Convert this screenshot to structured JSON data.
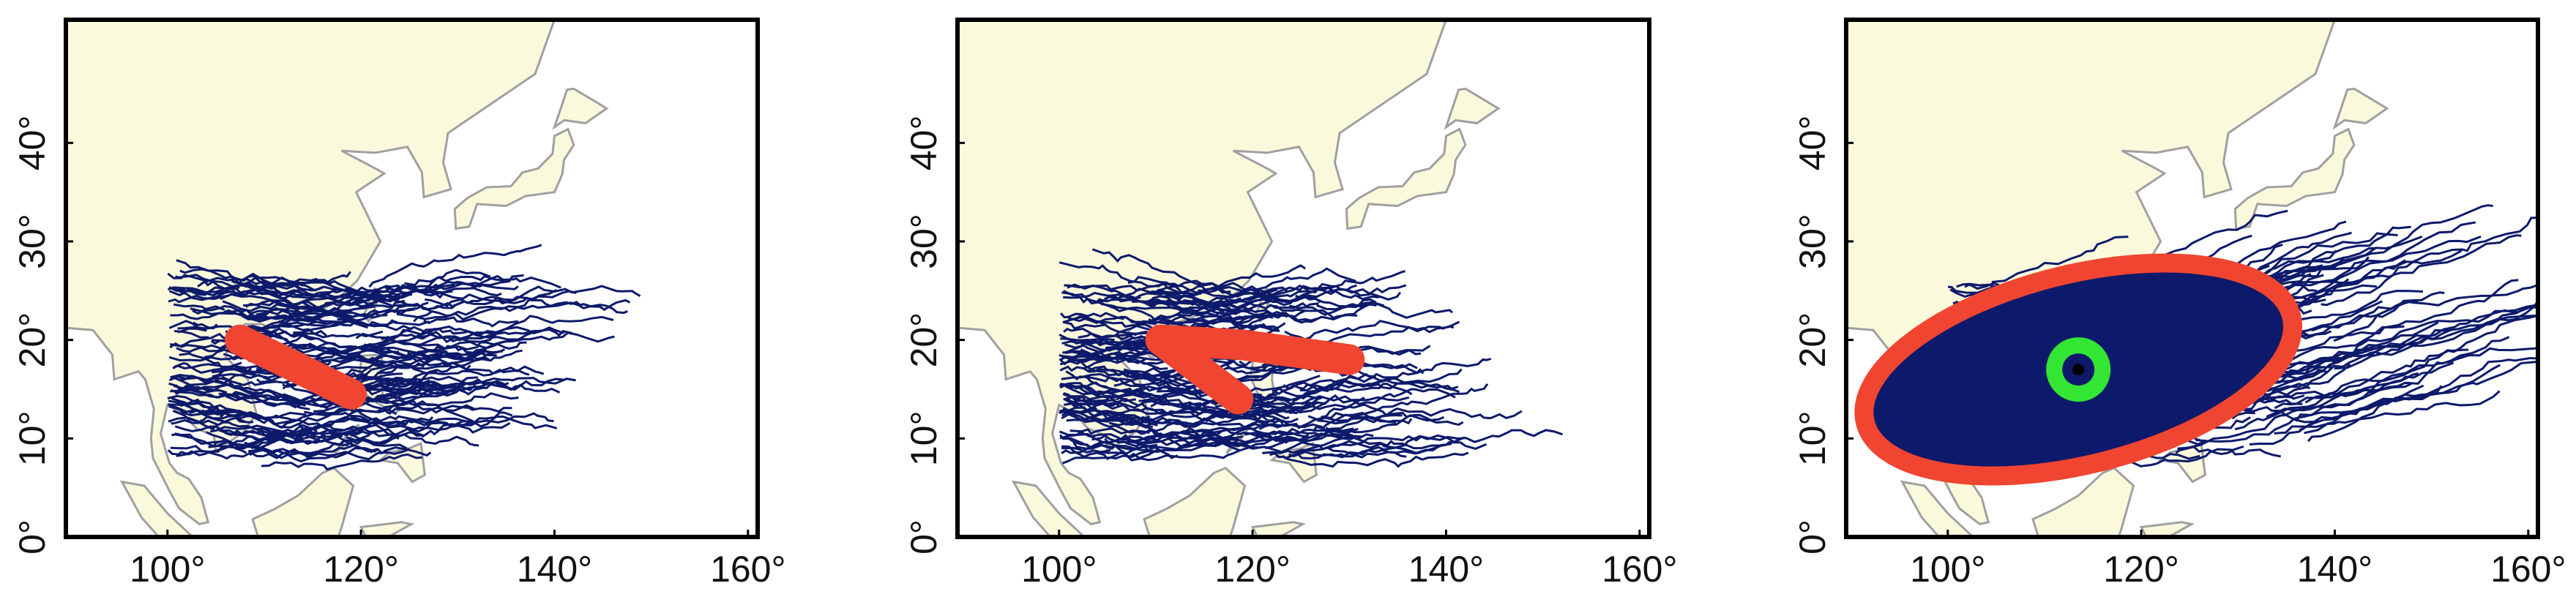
{
  "chart_data": [
    {
      "type": "map",
      "xlim": [
        89.5,
        161
      ],
      "ylim": [
        0,
        52.5
      ],
      "xticks": [
        {
          "value": 100,
          "label": "100°"
        },
        {
          "value": 120,
          "label": "120°"
        },
        {
          "value": 140,
          "label": "140°"
        },
        {
          "value": 160,
          "label": "160°"
        }
      ],
      "yticks": [
        {
          "value": 0,
          "label": "0°"
        },
        {
          "value": 10,
          "label": "10°"
        },
        {
          "value": 20,
          "label": "20°"
        },
        {
          "value": 30,
          "label": "30°"
        },
        {
          "value": 40,
          "label": "40°"
        }
      ],
      "series": [
        {
          "color": "#f04530",
          "x": [
            107.5,
            119
          ],
          "values": [
            20,
            14.5
          ]
        }
      ]
    },
    {
      "type": "map",
      "xlim": [
        89.5,
        161
      ],
      "ylim": [
        0,
        52.5
      ],
      "xticks": [
        {
          "value": 100,
          "label": "100°"
        },
        {
          "value": 120,
          "label": "120°"
        },
        {
          "value": 140,
          "label": "140°"
        },
        {
          "value": 160,
          "label": "160°"
        }
      ],
      "yticks": [
        {
          "value": 0,
          "label": "0°"
        },
        {
          "value": 10,
          "label": "10°"
        },
        {
          "value": 20,
          "label": "20°"
        },
        {
          "value": 30,
          "label": "30°"
        },
        {
          "value": 40,
          "label": "40°"
        }
      ],
      "series": [
        {
          "color": "#f04530",
          "x": [
            118.5,
            110.5,
            119,
            130
          ],
          "values": [
            14,
            20,
            19.5,
            18
          ]
        }
      ]
    },
    {
      "type": "map",
      "xlim": [
        89.5,
        161
      ],
      "ylim": [
        0,
        52.5
      ],
      "xticks": [
        {
          "value": 100,
          "label": "100°"
        },
        {
          "value": 120,
          "label": "120°"
        },
        {
          "value": 140,
          "label": "140°"
        },
        {
          "value": 160,
          "label": "160°"
        }
      ],
      "yticks": [
        {
          "value": 0,
          "label": "0°"
        },
        {
          "value": 10,
          "label": "10°"
        },
        {
          "value": 20,
          "label": "20°"
        },
        {
          "value": 30,
          "label": "30°"
        },
        {
          "value": 40,
          "label": "40°"
        }
      ],
      "series": [
        {
          "color": "#33e633",
          "x": [
            113.5
          ],
          "values": [
            17
          ]
        }
      ]
    }
  ]
}
